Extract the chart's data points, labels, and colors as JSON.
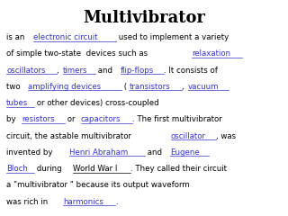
{
  "title": "Multivibrator",
  "title_fontsize": 13,
  "title_fontweight": "bold",
  "body_fontsize": 6.2,
  "background_color": "#ffffff",
  "text_color": "#000000",
  "link_color": "#3333cc",
  "segments": [
    [
      {
        "text": "is an ",
        "color": "#000000",
        "underline": false
      },
      {
        "text": "electronic circuit",
        "color": "#3333cc",
        "underline": true
      },
      {
        "text": " used to implement a variety",
        "color": "#000000",
        "underline": false
      }
    ],
    [
      {
        "text": "of simple two-state  devices such as ",
        "color": "#000000",
        "underline": false
      },
      {
        "text": "relaxation",
        "color": "#3333cc",
        "underline": true
      }
    ],
    [
      {
        "text": "oscillators",
        "color": "#3333cc",
        "underline": true
      },
      {
        "text": ", ",
        "color": "#000000",
        "underline": false
      },
      {
        "text": "timers",
        "color": "#3333cc",
        "underline": true
      },
      {
        "text": " and ",
        "color": "#000000",
        "underline": false
      },
      {
        "text": "flip-flops",
        "color": "#3333cc",
        "underline": true
      },
      {
        "text": ". It consists of",
        "color": "#000000",
        "underline": false
      }
    ],
    [
      {
        "text": "two ",
        "color": "#000000",
        "underline": false
      },
      {
        "text": "amplifying devices",
        "color": "#3333cc",
        "underline": true
      },
      {
        "text": " (",
        "color": "#000000",
        "underline": false
      },
      {
        "text": "transistors",
        "color": "#3333cc",
        "underline": true
      },
      {
        "text": ", ",
        "color": "#000000",
        "underline": false
      },
      {
        "text": "vacuum",
        "color": "#3333cc",
        "underline": true
      }
    ],
    [
      {
        "text": "tubes",
        "color": "#3333cc",
        "underline": true
      },
      {
        "text": " or other devices) cross-coupled",
        "color": "#000000",
        "underline": false
      }
    ],
    [
      {
        "text": "by ",
        "color": "#000000",
        "underline": false
      },
      {
        "text": "resistors",
        "color": "#3333cc",
        "underline": true
      },
      {
        "text": " or ",
        "color": "#000000",
        "underline": false
      },
      {
        "text": "capacitors",
        "color": "#3333cc",
        "underline": true
      },
      {
        "text": ". The first multivibrator",
        "color": "#000000",
        "underline": false
      }
    ],
    [
      {
        "text": "circuit, the astable multivibrator ",
        "color": "#000000",
        "underline": false
      },
      {
        "text": "oscillator",
        "color": "#3333cc",
        "underline": true
      },
      {
        "text": ", was",
        "color": "#000000",
        "underline": false
      }
    ],
    [
      {
        "text": "invented by ",
        "color": "#000000",
        "underline": false
      },
      {
        "text": "Henri Abraham",
        "color": "#3333cc",
        "underline": true
      },
      {
        "text": " and ",
        "color": "#000000",
        "underline": false
      },
      {
        "text": "Eugene",
        "color": "#3333cc",
        "underline": true
      }
    ],
    [
      {
        "text": "Bloch",
        "color": "#3333cc",
        "underline": true
      },
      {
        "text": " during ",
        "color": "#000000",
        "underline": false
      },
      {
        "text": "World War I",
        "color": "#000000",
        "underline": true
      },
      {
        "text": ". They called their circuit",
        "color": "#000000",
        "underline": false
      }
    ],
    [
      {
        "text": "a \"multivibrator \" because its output waveform",
        "color": "#000000",
        "underline": false
      }
    ],
    [
      {
        "text": "was rich in ",
        "color": "#000000",
        "underline": false
      },
      {
        "text": "harmonics",
        "color": "#3333cc",
        "underline": true
      },
      {
        "text": ".",
        "color": "#000000",
        "underline": false
      }
    ]
  ]
}
